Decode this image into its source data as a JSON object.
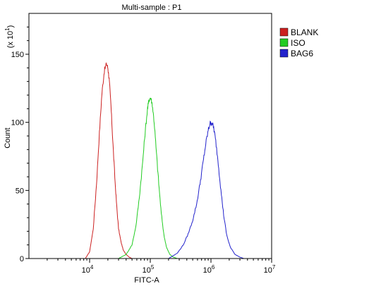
{
  "chart_data": {
    "type": "line",
    "title": "Multi-sample : P1",
    "xlabel": "FITC-A",
    "ylabel": "Count",
    "y_multiplier_base": "(x 10",
    "y_multiplier_exp": "1",
    "y_multiplier_close": ")",
    "x_scale": "log",
    "xlim": [
      1000,
      10000000
    ],
    "ylim": [
      0,
      180
    ],
    "x_ticks": [
      {
        "value": 10000,
        "base": "10",
        "exp": "4"
      },
      {
        "value": 100000,
        "base": "10",
        "exp": "5"
      },
      {
        "value": 1000000,
        "base": "10",
        "exp": "6"
      },
      {
        "value": 10000000,
        "base": "10",
        "exp": "7"
      }
    ],
    "y_ticks": [
      {
        "value": 0,
        "label": "0"
      },
      {
        "value": 50,
        "label": "50"
      },
      {
        "value": 100,
        "label": "100"
      },
      {
        "value": 150,
        "label": "150"
      }
    ],
    "legend_position": "right",
    "series": [
      {
        "name": "BLANK",
        "color": "#cc2020",
        "x": [
          8500,
          10000,
          11500,
          13000,
          14500,
          16000,
          17500,
          19000,
          20000,
          21000,
          22500,
          24000,
          26000,
          28000,
          30000,
          33000,
          36000,
          40000,
          45000,
          50000
        ],
        "y": [
          0,
          5,
          22,
          55,
          92,
          122,
          138,
          143,
          140,
          132,
          112,
          88,
          60,
          38,
          22,
          12,
          6,
          3,
          1,
          0
        ]
      },
      {
        "name": "ISO",
        "color": "#22cc22",
        "x": [
          30000,
          40000,
          50000,
          58000,
          66000,
          74000,
          82000,
          90000,
          96000,
          102000,
          108000,
          116000,
          126000,
          138000,
          152000,
          168000,
          186000,
          210000,
          240000,
          280000
        ],
        "y": [
          0,
          3,
          10,
          24,
          45,
          68,
          92,
          110,
          117,
          118,
          113,
          100,
          78,
          55,
          33,
          17,
          8,
          3,
          1,
          0
        ]
      },
      {
        "name": "BAG6",
        "color": "#2222cc",
        "x": [
          200000,
          280000,
          350000,
          420000,
          500000,
          580000,
          660000,
          740000,
          820000,
          900000,
          960000,
          1030000,
          1110000,
          1200000,
          1320000,
          1460000,
          1620000,
          1820000,
          2100000,
          2500000,
          3000000,
          3500000
        ],
        "y": [
          0,
          4,
          10,
          18,
          28,
          40,
          55,
          70,
          84,
          94,
          99,
          100,
          96,
          86,
          70,
          50,
          32,
          17,
          8,
          3,
          1,
          0
        ]
      }
    ]
  }
}
